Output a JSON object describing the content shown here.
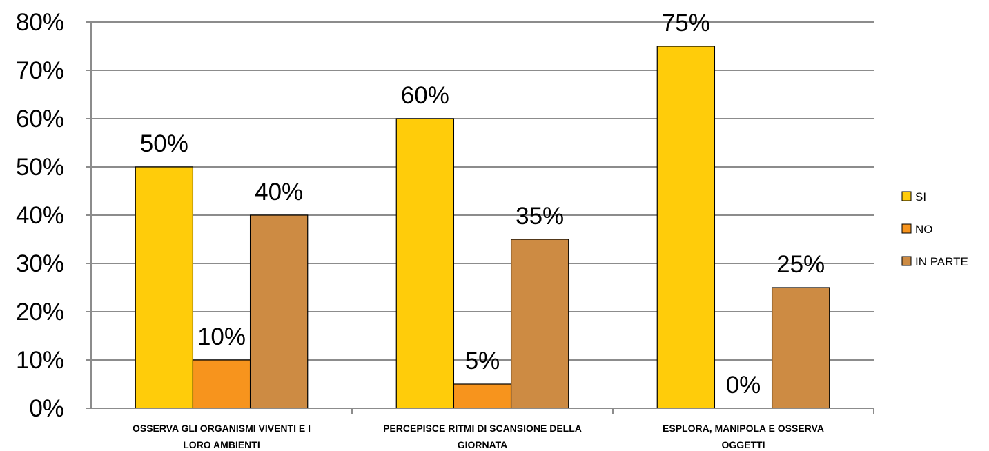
{
  "chart_data": {
    "type": "bar",
    "categories": [
      [
        "OSSERVA GLI ORGANISMI VIVENTI E I",
        "LORO AMBIENTI"
      ],
      [
        "PERCEPISCE RITMI DI SCANSIONE DELLA",
        "GIORNATA"
      ],
      [
        "ESPLORA, MANIPOLA E OSSERVA",
        "OGGETTI"
      ]
    ],
    "series": [
      {
        "name": "SI",
        "values": [
          50,
          60,
          75
        ],
        "color": "#FFCC0A",
        "labels": [
          "50%",
          "60%",
          "75%"
        ]
      },
      {
        "name": "NO",
        "values": [
          10,
          5,
          0
        ],
        "color": "#F7941D",
        "labels": [
          "10%",
          "5%",
          "0%"
        ]
      },
      {
        "name": "IN PARTE",
        "values": [
          40,
          35,
          25
        ],
        "color": "#CD8B43",
        "labels": [
          "40%",
          "35%",
          "25%"
        ]
      }
    ],
    "ylim": [
      0,
      80
    ],
    "yticks": [
      "0%",
      "10%",
      "20%",
      "30%",
      "40%",
      "50%",
      "60%",
      "70%",
      "80%"
    ],
    "grid": true,
    "legend": "right"
  }
}
